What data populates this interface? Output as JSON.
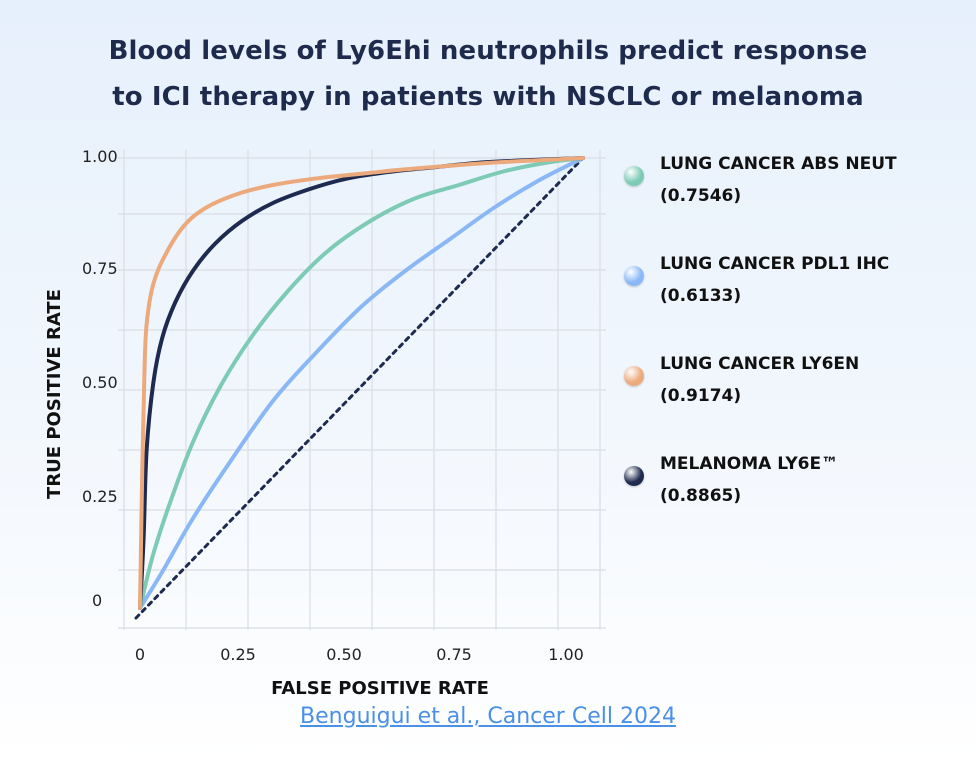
{
  "title_lines": [
    "Blood levels of Ly6Ehi neutrophils predict response",
    "to ICI therapy in patients with NSCLC or melanoma"
  ],
  "citation": "Benguigui et al., Cancer Cell 2024",
  "colors": {
    "abs_neut": "#7dcab5",
    "pdl1": "#8ab8f6",
    "ly6en": "#eca97c",
    "melanoma": "#1e2a4f",
    "diagonal": "#1e2a4f",
    "grid": "#d9dde4"
  },
  "legend": [
    {
      "name": "LUNG CANCER ABS NEUT",
      "auc": "(0.7546)",
      "color": "#7dcab5",
      "dot": "green-circle"
    },
    {
      "name": "LUNG CANCER PDL1 IHC",
      "auc": "(0.6133)",
      "color": "#8ab8f6",
      "dot": "blue-circle"
    },
    {
      "name": "LUNG CANCER LY6EN",
      "auc": "(0.9174)",
      "color": "#eca97c",
      "dot": "orange-circle"
    },
    {
      "name": "MELANOMA LY6E™",
      "auc": "(0.8865)",
      "color": "#1e2a4f",
      "dot": "navy-circle"
    }
  ],
  "chart_data": {
    "type": "line",
    "xlabel": "FALSE POSITIVE RATE",
    "ylabel": "TRUE POSITIVE RATE",
    "xlim": [
      0,
      1
    ],
    "ylim": [
      0,
      1
    ],
    "xticks": [
      "0",
      "0.25",
      "0.50",
      "0.75",
      "1.00"
    ],
    "yticks": [
      "0",
      "0.25",
      "0.50",
      "0.75",
      "1.00"
    ],
    "grid": true,
    "legend_position": "right",
    "diagonal_reference": {
      "x": [
        0,
        1
      ],
      "y": [
        0,
        1
      ],
      "style": "dotted"
    },
    "series": [
      {
        "name": "LUNG CANCER ABS NEUT",
        "x": [
          0,
          0.03,
          0.07,
          0.12,
          0.18,
          0.25,
          0.33,
          0.42,
          0.52,
          0.62,
          0.72,
          0.82,
          0.92,
          1.0
        ],
        "y": [
          0,
          0.12,
          0.24,
          0.37,
          0.49,
          0.6,
          0.7,
          0.79,
          0.86,
          0.91,
          0.94,
          0.97,
          0.99,
          1.0
        ]
      },
      {
        "name": "LUNG CANCER PDL1 IHC",
        "x": [
          0,
          0.05,
          0.12,
          0.2,
          0.3,
          0.4,
          0.5,
          0.6,
          0.7,
          0.8,
          0.9,
          1.0
        ],
        "y": [
          0,
          0.08,
          0.2,
          0.32,
          0.46,
          0.57,
          0.67,
          0.75,
          0.82,
          0.89,
          0.95,
          1.0
        ]
      },
      {
        "name": "LUNG CANCER LY6EN",
        "x": [
          0,
          0.005,
          0.01,
          0.015,
          0.03,
          0.06,
          0.1,
          0.15,
          0.22,
          0.3,
          0.4,
          0.5,
          0.6,
          0.7,
          0.8,
          0.9,
          1.0
        ],
        "y": [
          0,
          0.3,
          0.52,
          0.63,
          0.72,
          0.79,
          0.85,
          0.89,
          0.92,
          0.94,
          0.955,
          0.965,
          0.975,
          0.983,
          0.99,
          0.995,
          1.0
        ]
      },
      {
        "name": "MELANOMA LY6E™",
        "x": [
          0,
          0.008,
          0.015,
          0.03,
          0.05,
          0.08,
          0.12,
          0.17,
          0.23,
          0.3,
          0.38,
          0.47,
          0.57,
          0.67,
          0.77,
          0.87,
          1.0
        ],
        "y": [
          0,
          0.15,
          0.35,
          0.5,
          0.6,
          0.68,
          0.75,
          0.81,
          0.86,
          0.9,
          0.93,
          0.955,
          0.97,
          0.98,
          0.99,
          0.995,
          1.0
        ]
      }
    ]
  }
}
